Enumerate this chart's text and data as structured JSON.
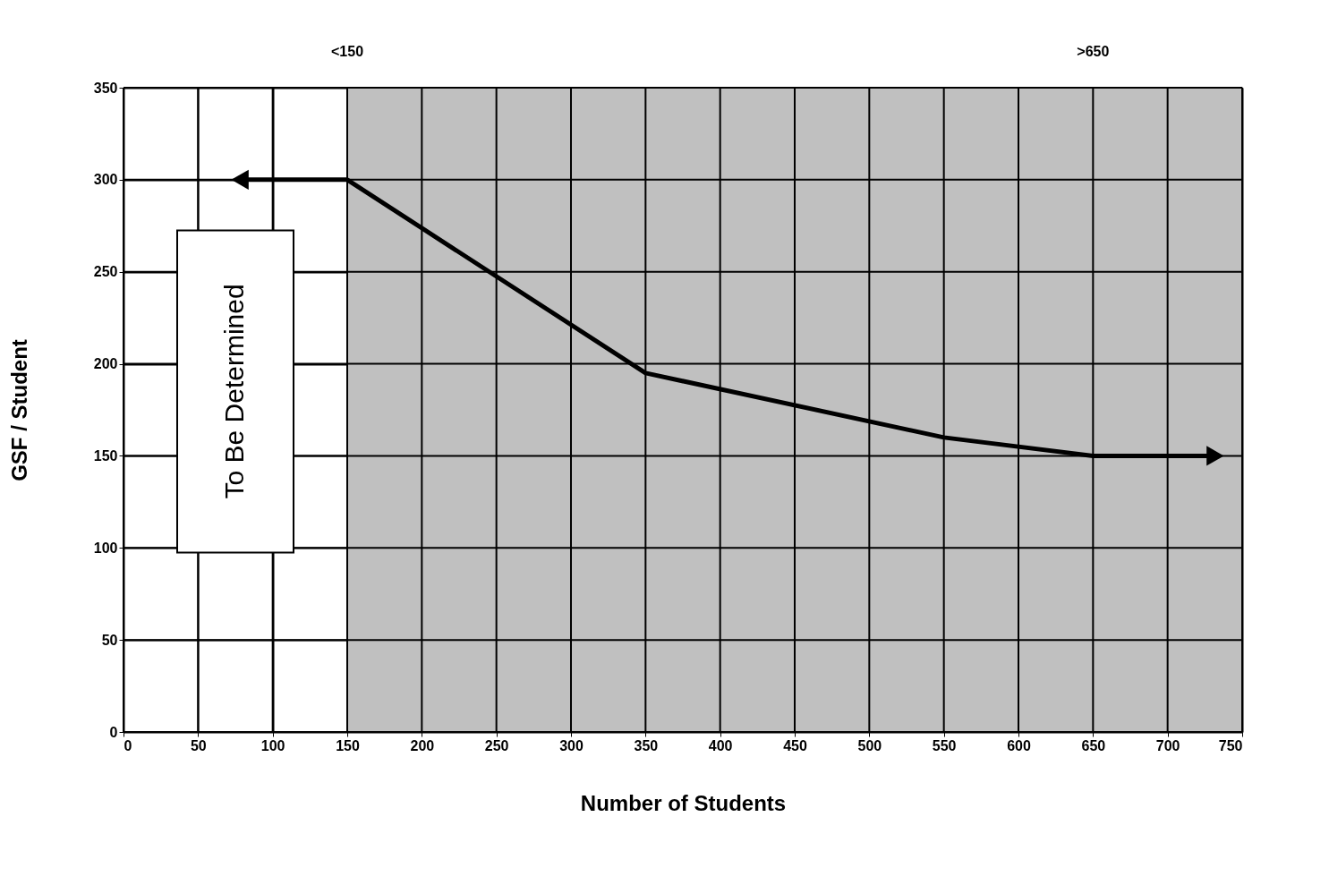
{
  "chart_data": {
    "type": "line",
    "xlabel": "Number of Students",
    "ylabel": "GSF / Student",
    "series": [
      {
        "color": "#000000",
        "x": [
          80,
          150,
          350,
          550,
          650,
          730
        ],
        "values": [
          300,
          300,
          195,
          160,
          150,
          150
        ]
      }
    ],
    "xlim": [
      0,
      750
    ],
    "xticks": [
      0,
      50,
      100,
      150,
      200,
      250,
      300,
      350,
      400,
      450,
      500,
      550,
      600,
      650,
      700,
      750
    ],
    "ylim": [
      0,
      350
    ],
    "yticks": [
      0,
      50,
      100,
      150,
      200,
      250,
      300,
      350
    ],
    "bands": [
      {
        "axis": "x",
        "from": 150,
        "to": 750,
        "color": "#c0c0c0"
      }
    ],
    "annotations": [
      "<150",
      ">650",
      "To Be Determined"
    ],
    "grid": true,
    "marker": "none",
    "line_style": "solid"
  }
}
